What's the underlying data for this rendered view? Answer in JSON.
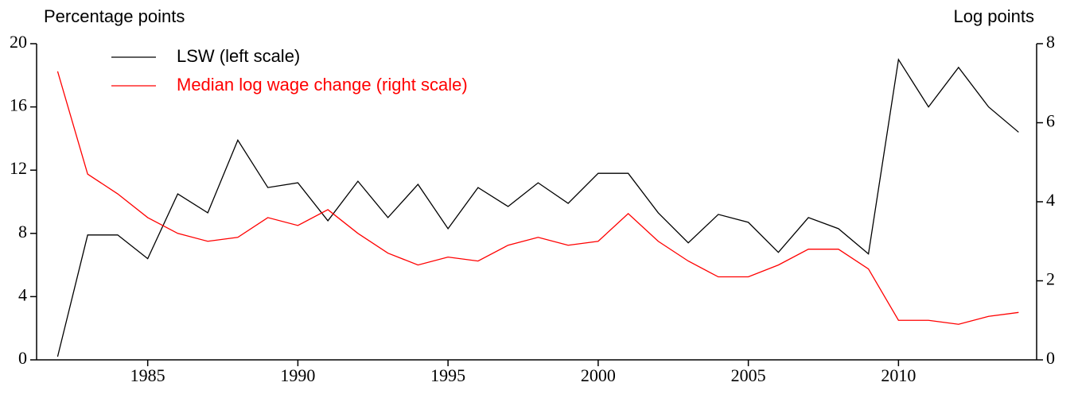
{
  "chart_data": {
    "type": "line",
    "y_label": "Percentage points",
    "y2_label": "Log points",
    "x": [
      1982,
      1983,
      1984,
      1985,
      1986,
      1987,
      1988,
      1989,
      1990,
      1991,
      1992,
      1993,
      1994,
      1995,
      1996,
      1997,
      1998,
      1999,
      2000,
      2001,
      2002,
      2003,
      2004,
      2005,
      2006,
      2007,
      2008,
      2009,
      2010,
      2011,
      2012,
      2013,
      2014
    ],
    "xlim": [
      1981.3,
      2014.6
    ],
    "xticks": [
      1985,
      1990,
      1995,
      2000,
      2005,
      2010
    ],
    "ylim": [
      0,
      20
    ],
    "yticks": [
      0,
      4,
      8,
      12,
      16,
      20
    ],
    "y2lim": [
      0,
      8
    ],
    "y2ticks": [
      0,
      2,
      4,
      6,
      8
    ],
    "series": [
      {
        "name": "LSW (left scale)",
        "color": "#000000",
        "values": [
          0.2,
          7.9,
          7.9,
          6.4,
          10.5,
          9.3,
          13.9,
          10.9,
          11.2,
          8.8,
          11.3,
          9.0,
          11.1,
          8.3,
          10.9,
          9.7,
          11.2,
          9.9,
          11.8,
          11.8,
          9.3,
          7.4,
          9.2,
          8.7,
          6.8,
          9.0,
          8.3,
          6.7,
          19.0,
          16.0,
          18.5,
          16.0,
          14.4
        ]
      },
      {
        "name": "Median log wage change (right scale)",
        "color": "#ff0000",
        "axis": "y2",
        "values": [
          7.3,
          4.7,
          4.2,
          3.6,
          3.2,
          3.0,
          3.1,
          3.6,
          3.4,
          3.8,
          3.2,
          2.7,
          2.4,
          2.6,
          2.5,
          2.9,
          3.1,
          2.9,
          3.0,
          3.7,
          3.0,
          2.5,
          2.1,
          2.1,
          2.4,
          2.8,
          2.8,
          2.3,
          1.0,
          1.0,
          0.9,
          1.1,
          1.2
        ]
      }
    ]
  }
}
